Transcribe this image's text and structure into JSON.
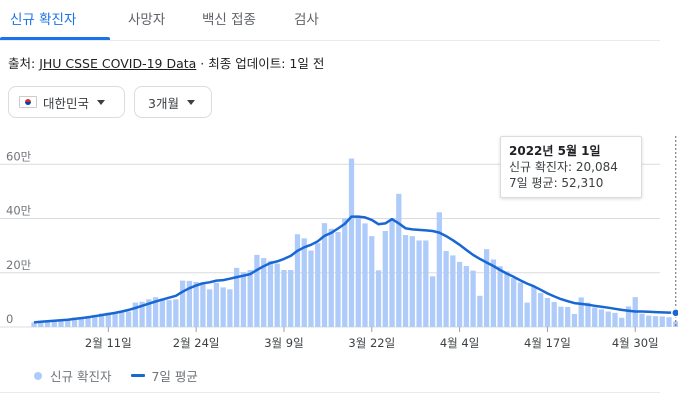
{
  "tabs": [
    {
      "label": "신규 확진자",
      "active": true
    },
    {
      "label": "사망자",
      "active": false
    },
    {
      "label": "백신 접종",
      "active": false
    },
    {
      "label": "검사",
      "active": false
    }
  ],
  "source": {
    "prefix": "출처: ",
    "link": "JHU CSSE COVID-19 Data",
    "suffix": " · 최종 업데이트: 1일 전"
  },
  "filters": {
    "region": {
      "label": "대한민국",
      "flag_icon": "south-korea-flag-icon"
    },
    "period": {
      "label": "3개월"
    }
  },
  "tooltip": {
    "date": "2022년 5월 1일",
    "cases_label": "신규 확진자: 20,084",
    "avg_label": "7일 평균: 52,310"
  },
  "legend": {
    "cases": "신규 확진자",
    "avg": "7일 평균"
  },
  "colors": {
    "bar": "#aecbfa",
    "line": "#1967d2",
    "accent": "#1a73e8",
    "grid": "#dadce0"
  },
  "chart_data": {
    "type": "bar",
    "x_start": "2022-01-31",
    "x_end": "2022-05-01",
    "yticks": [
      {
        "value": 0,
        "label": "0"
      },
      {
        "value": 200000,
        "label": "20만"
      },
      {
        "value": 400000,
        "label": "40만"
      },
      {
        "value": 600000,
        "label": "60만"
      }
    ],
    "xticks": [
      {
        "label": "2월 11일",
        "date": "2022-02-11"
      },
      {
        "label": "2월 24일",
        "date": "2022-02-24"
      },
      {
        "label": "3월 9일",
        "date": "2022-03-09"
      },
      {
        "label": "3월 22일",
        "date": "2022-03-22"
      },
      {
        "label": "4월 4일",
        "date": "2022-04-04"
      },
      {
        "label": "4월 17일",
        "date": "2022-04-17"
      },
      {
        "label": "4월 30일",
        "date": "2022-04-30"
      }
    ],
    "ylim": [
      0,
      660000
    ],
    "series": [
      {
        "name": "신규 확진자",
        "type": "bar",
        "values": [
          17000,
          18000,
          20000,
          23000,
          27000,
          30000,
          35000,
          36000,
          38000,
          45000,
          50000,
          53000,
          49000,
          55000,
          57000,
          90000,
          93000,
          102000,
          110000,
          105000,
          99000,
          102000,
          171000,
          170000,
          166000,
          165000,
          139000,
          163000,
          146000,
          139000,
          218000,
          202000,
          210000,
          266000,
          254000,
          243000,
          234000,
          210000,
          210000,
          342000,
          327000,
          282000,
          309000,
          383000,
          362000,
          350000,
          400000,
          621000,
          407000,
          382000,
          335000,
          209000,
          354000,
          395000,
          491000,
          339000,
          335000,
          319000,
          319000,
          187000,
          423000,
          280000,
          264000,
          240000,
          225000,
          208000,
          115000,
          287000,
          249000,
          224000,
          205000,
          180000,
          164000,
          90000,
          148000,
          125000,
          107000,
          92000,
          75000,
          74000,
          48000,
          109000,
          90000,
          72000,
          65000,
          57000,
          52000,
          34000,
          76000,
          110000,
          49000,
          42000,
          40000,
          39000,
          36000,
          20084
        ]
      },
      {
        "name": "7일 평균",
        "type": "line",
        "values": [
          17000,
          19000,
          21000,
          23000,
          25000,
          27000,
          30000,
          33000,
          36000,
          40000,
          44000,
          48000,
          52000,
          57000,
          63000,
          70000,
          78000,
          86000,
          94000,
          101000,
          108000,
          115000,
          130000,
          143000,
          153000,
          161000,
          165000,
          171000,
          173000,
          178000,
          184000,
          189000,
          195000,
          210000,
          224000,
          236000,
          242000,
          251000,
          262000,
          281000,
          294000,
          303000,
          316000,
          336000,
          347000,
          363000,
          380000,
          407000,
          407000,
          404000,
          395000,
          379000,
          382000,
          398000,
          382000,
          364000,
          360000,
          358000,
          356000,
          354000,
          348000,
          335000,
          320000,
          303000,
          284000,
          266000,
          251000,
          238000,
          225000,
          210000,
          197000,
          185000,
          172000,
          160000,
          150000,
          137000,
          124000,
          113000,
          103000,
          95000,
          88000,
          85000,
          82000,
          78000,
          75000,
          71000,
          67000,
          63000,
          60000,
          57000,
          57000,
          56000,
          55000,
          54000,
          53000,
          52310
        ]
      }
    ],
    "grid": true,
    "legend_position": "bottom-left"
  }
}
